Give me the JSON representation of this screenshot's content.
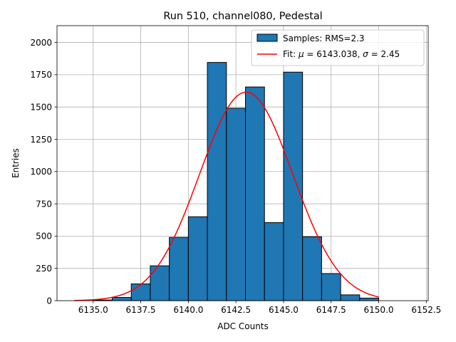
{
  "chart_data": {
    "type": "bar",
    "title": "Run 510, channel080, Pedestal",
    "xlabel": "ADC Counts",
    "ylabel": "Entries",
    "xlim": [
      6133.1,
      6152.6
    ],
    "ylim": [
      0,
      2130
    ],
    "grid": true,
    "legend_position": "top-right",
    "x_ticks": [
      {
        "value": 6135.0,
        "label": "6135.0"
      },
      {
        "value": 6137.5,
        "label": "6137.5"
      },
      {
        "value": 6140.0,
        "label": "6140.0"
      },
      {
        "value": 6142.5,
        "label": "6142.5"
      },
      {
        "value": 6145.0,
        "label": "6145.0"
      },
      {
        "value": 6147.5,
        "label": "6147.5"
      },
      {
        "value": 6150.0,
        "label": "6150.0"
      },
      {
        "value": 6152.5,
        "label": "6152.5"
      }
    ],
    "y_ticks": [
      {
        "value": 0,
        "label": "0"
      },
      {
        "value": 250,
        "label": "250"
      },
      {
        "value": 500,
        "label": "500"
      },
      {
        "value": 750,
        "label": "750"
      },
      {
        "value": 1000,
        "label": "1000"
      },
      {
        "value": 1250,
        "label": "1250"
      },
      {
        "value": 1500,
        "label": "1500"
      },
      {
        "value": 1750,
        "label": "1750"
      },
      {
        "value": 2000,
        "label": "2000"
      }
    ],
    "histogram": {
      "name": "Samples: RMS=2.3",
      "color": "#1f77b4",
      "edge_color": "#000000",
      "bins": [
        {
          "x0": 6135,
          "x1": 6136,
          "value": 5
        },
        {
          "x0": 6136,
          "x1": 6137,
          "value": 25
        },
        {
          "x0": 6137,
          "x1": 6138,
          "value": 130
        },
        {
          "x0": 6138,
          "x1": 6139,
          "value": 270
        },
        {
          "x0": 6139,
          "x1": 6140,
          "value": 490
        },
        {
          "x0": 6140,
          "x1": 6141,
          "value": 650
        },
        {
          "x0": 6141,
          "x1": 6142,
          "value": 1845
        },
        {
          "x0": 6142,
          "x1": 6143,
          "value": 1490
        },
        {
          "x0": 6143,
          "x1": 6144,
          "value": 1655
        },
        {
          "x0": 6144,
          "x1": 6145,
          "value": 605
        },
        {
          "x0": 6145,
          "x1": 6146,
          "value": 1770
        },
        {
          "x0": 6146,
          "x1": 6147,
          "value": 495
        },
        {
          "x0": 6147,
          "x1": 6148,
          "value": 210
        },
        {
          "x0": 6148,
          "x1": 6149,
          "value": 45
        },
        {
          "x0": 6149,
          "x1": 6150,
          "value": 20
        }
      ]
    },
    "fit": {
      "name": "Fit: μ = 6143.038, σ = 2.45",
      "name_prefix": "Fit: ",
      "mu_symbol": "μ",
      "mu_text": " = 6143.038, ",
      "sigma_symbol": "σ",
      "sigma_text": " = 2.45",
      "color": "#ff0000",
      "mu": 6143.038,
      "sigma": 2.45,
      "amplitude": 1615,
      "x_range": [
        6134,
        6150
      ]
    }
  }
}
